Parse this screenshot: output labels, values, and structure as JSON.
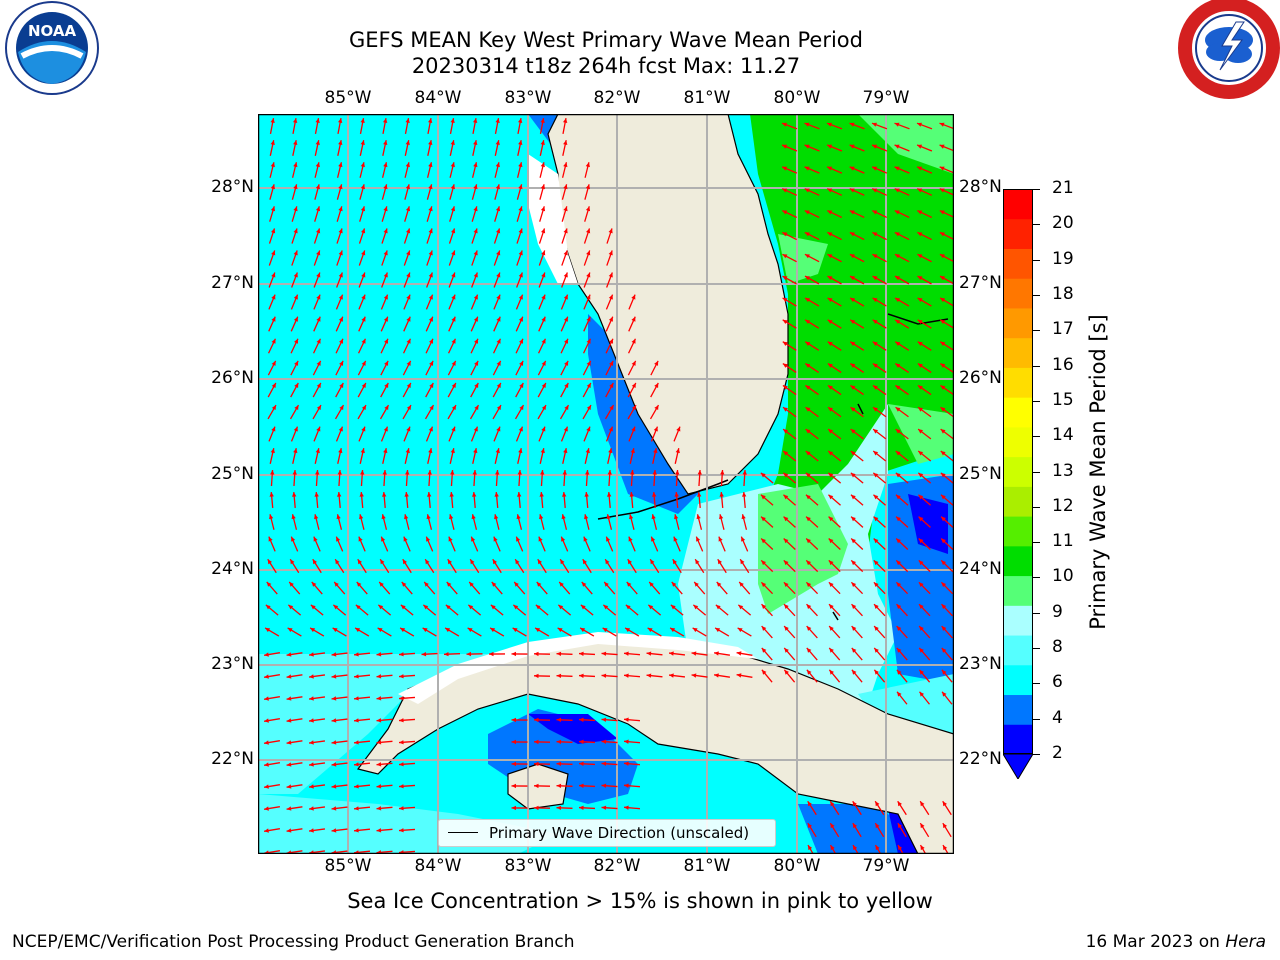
{
  "header": {
    "title_line1": "GEFS MEAN Key West Primary Wave Mean Period",
    "title_line2": "20230314 t18z 264h fcst   Max: 11.27"
  },
  "logos": {
    "left": {
      "icon": "noaa-logo",
      "text": "NOAA"
    },
    "right": {
      "icon": "national-weather-service-logo"
    }
  },
  "map": {
    "lon_labels": [
      "85°W",
      "84°W",
      "83°W",
      "82°W",
      "81°W",
      "80°W",
      "79°W"
    ],
    "lat_labels": [
      "28°N",
      "27°N",
      "26°N",
      "25°N",
      "24°N",
      "23°N",
      "22°N"
    ],
    "land_color": "#efecdc",
    "arrow_color": "#ff0000",
    "gridlines": true
  },
  "colorbar": {
    "label": "Primary Wave Mean Period [s]",
    "ticks": [
      "21",
      "20",
      "19",
      "18",
      "17",
      "16",
      "15",
      "14",
      "13",
      "12",
      "11",
      "10",
      "9",
      "8",
      "6",
      "4",
      "2"
    ],
    "colors_bottom_to_top": [
      "#0000ff",
      "#0077ff",
      "#00ffff",
      "#55ffff",
      "#aaffff",
      "#55ff77",
      "#00dd00",
      "#55ee00",
      "#aaee00",
      "#ccff00",
      "#eeff00",
      "#ffff00",
      "#ffdd00",
      "#ffbb00",
      "#ff9900",
      "#ff7700",
      "#ff5500",
      "#ff2200",
      "#ff0000"
    ]
  },
  "legend": {
    "label": "Primary Wave Direction (unscaled)"
  },
  "note": "Sea Ice Concentration > 15% is shown in pink to yellow",
  "footer": {
    "org": "NCEP/EMC/Verification Post Processing Product Generation Branch",
    "date": "16 Mar 2023 on ",
    "host": "Hera"
  }
}
